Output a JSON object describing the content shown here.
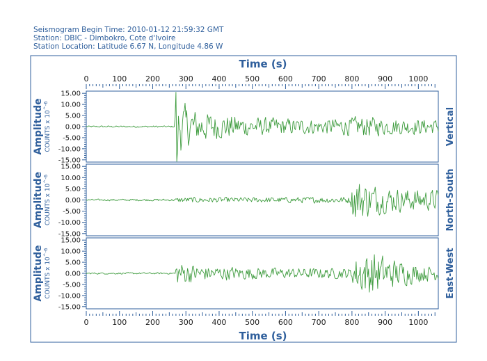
{
  "header": {
    "begin_time": "Seismogram Begin Time: 2010-01-12 21:59:32 GMT",
    "station": "Station: DBIC - Dimbokro, Cote d'Ivoire",
    "location": "Station Location: Latitude 6.67 N, Longitude 4.86 W"
  },
  "colors": {
    "frame": "#2f5f9c",
    "trace": "#3d9b3d",
    "text": "#2f5f9c"
  },
  "chart_data": {
    "type": "line",
    "xlabel": "Time (s)",
    "x_ticks": [
      "0",
      "100",
      "200",
      "300",
      "400",
      "500",
      "600",
      "700",
      "800",
      "900",
      "1000"
    ],
    "xlim": [
      0,
      1060
    ],
    "ylabel": "Amplitude",
    "yunit_prefix": "COUNTS x 10",
    "yunit_exp": "^-6",
    "y_ticks": [
      "15.00",
      "10.00",
      "5.00",
      "0.00",
      "-5.00",
      "-10.00",
      "-15.00"
    ],
    "ylim": [
      -16,
      16
    ],
    "grid": false,
    "series": [
      {
        "name": "Vertical",
        "envelope": [
          {
            "t": 0,
            "amp": 0.4
          },
          {
            "t": 265,
            "amp": 0.4
          },
          {
            "t": 270,
            "amp": 16
          },
          {
            "t": 290,
            "amp": 11
          },
          {
            "t": 330,
            "amp": 8
          },
          {
            "t": 400,
            "amp": 6
          },
          {
            "t": 500,
            "amp": 4.5
          },
          {
            "t": 600,
            "amp": 4
          },
          {
            "t": 700,
            "amp": 3.5
          },
          {
            "t": 850,
            "amp": 5
          },
          {
            "t": 900,
            "amp": 4
          },
          {
            "t": 1060,
            "amp": 3.5
          }
        ]
      },
      {
        "name": "North-South",
        "envelope": [
          {
            "t": 0,
            "amp": 0.4
          },
          {
            "t": 265,
            "amp": 0.5
          },
          {
            "t": 280,
            "amp": 1.3
          },
          {
            "t": 500,
            "amp": 1.2
          },
          {
            "t": 795,
            "amp": 1.6
          },
          {
            "t": 805,
            "amp": 11
          },
          {
            "t": 830,
            "amp": 9
          },
          {
            "t": 900,
            "amp": 6
          },
          {
            "t": 1000,
            "amp": 5
          },
          {
            "t": 1060,
            "amp": 5
          }
        ]
      },
      {
        "name": "East-West",
        "envelope": [
          {
            "t": 0,
            "amp": 0.4
          },
          {
            "t": 265,
            "amp": 0.4
          },
          {
            "t": 272,
            "amp": 6
          },
          {
            "t": 350,
            "amp": 3.5
          },
          {
            "t": 600,
            "amp": 2.5
          },
          {
            "t": 795,
            "amp": 2.5
          },
          {
            "t": 815,
            "amp": 9
          },
          {
            "t": 860,
            "amp": 11
          },
          {
            "t": 900,
            "amp": 8
          },
          {
            "t": 1000,
            "amp": 4
          },
          {
            "t": 1060,
            "amp": 3.5
          }
        ]
      }
    ]
  }
}
